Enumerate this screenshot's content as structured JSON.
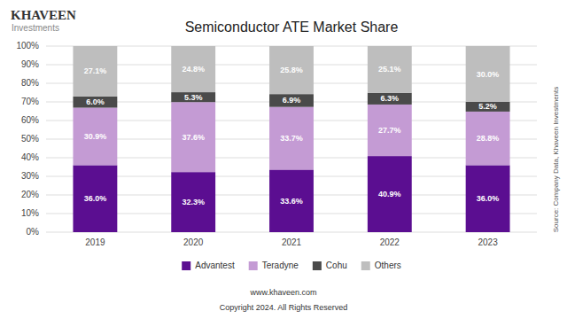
{
  "chart_data": {
    "type": "bar",
    "title": "Semiconductor ATE Market Share",
    "categories": [
      "2019",
      "2020",
      "2021",
      "2022",
      "2023"
    ],
    "series": [
      {
        "name": "Advantest",
        "color": "#5B0E91",
        "values": [
          36.0,
          32.3,
          33.6,
          40.9,
          36.0
        ],
        "value_labels": [
          "36.0%",
          "32.3%",
          "33.6%",
          "40.9%",
          "36.0%"
        ]
      },
      {
        "name": "Teradyne",
        "color": "#C49BD4",
        "values": [
          30.9,
          37.6,
          33.7,
          27.7,
          28.8
        ],
        "value_labels": [
          "30.9%",
          "37.6%",
          "33.7%",
          "27.7%",
          "28.8%"
        ]
      },
      {
        "name": "Cohu",
        "color": "#4A4A4A",
        "values": [
          6.0,
          5.3,
          6.9,
          6.3,
          5.2
        ],
        "value_labels": [
          "6.0%",
          "5.3%",
          "6.9%",
          "6.3%",
          "5.2%"
        ]
      },
      {
        "name": "Others",
        "color": "#BEBEBE",
        "values": [
          27.1,
          24.8,
          25.8,
          25.1,
          30.0
        ],
        "value_labels": [
          "27.1%",
          "24.8%",
          "25.8%",
          "25.1%",
          "30.0%"
        ]
      }
    ],
    "ylim": [
      0,
      100
    ],
    "yticks": [
      {
        "value": 0,
        "label": "0%"
      },
      {
        "value": 10,
        "label": "10%"
      },
      {
        "value": 20,
        "label": "20%"
      },
      {
        "value": 30,
        "label": "30%"
      },
      {
        "value": 40,
        "label": "40%"
      },
      {
        "value": 50,
        "label": "50%"
      },
      {
        "value": 60,
        "label": "60%"
      },
      {
        "value": 70,
        "label": "70%"
      },
      {
        "value": 80,
        "label": "80%"
      },
      {
        "value": 90,
        "label": "90%"
      },
      {
        "value": 100,
        "label": "100%"
      }
    ],
    "stacked": true,
    "data_labels": true,
    "grid": true,
    "legend": "bottom",
    "annotations": [
      "KHAVEEN",
      "Investments",
      "Source: Company Data, Khaveen Investments",
      "www.khaveen.com",
      "Copyright 2024. All Rights Reserved"
    ]
  }
}
